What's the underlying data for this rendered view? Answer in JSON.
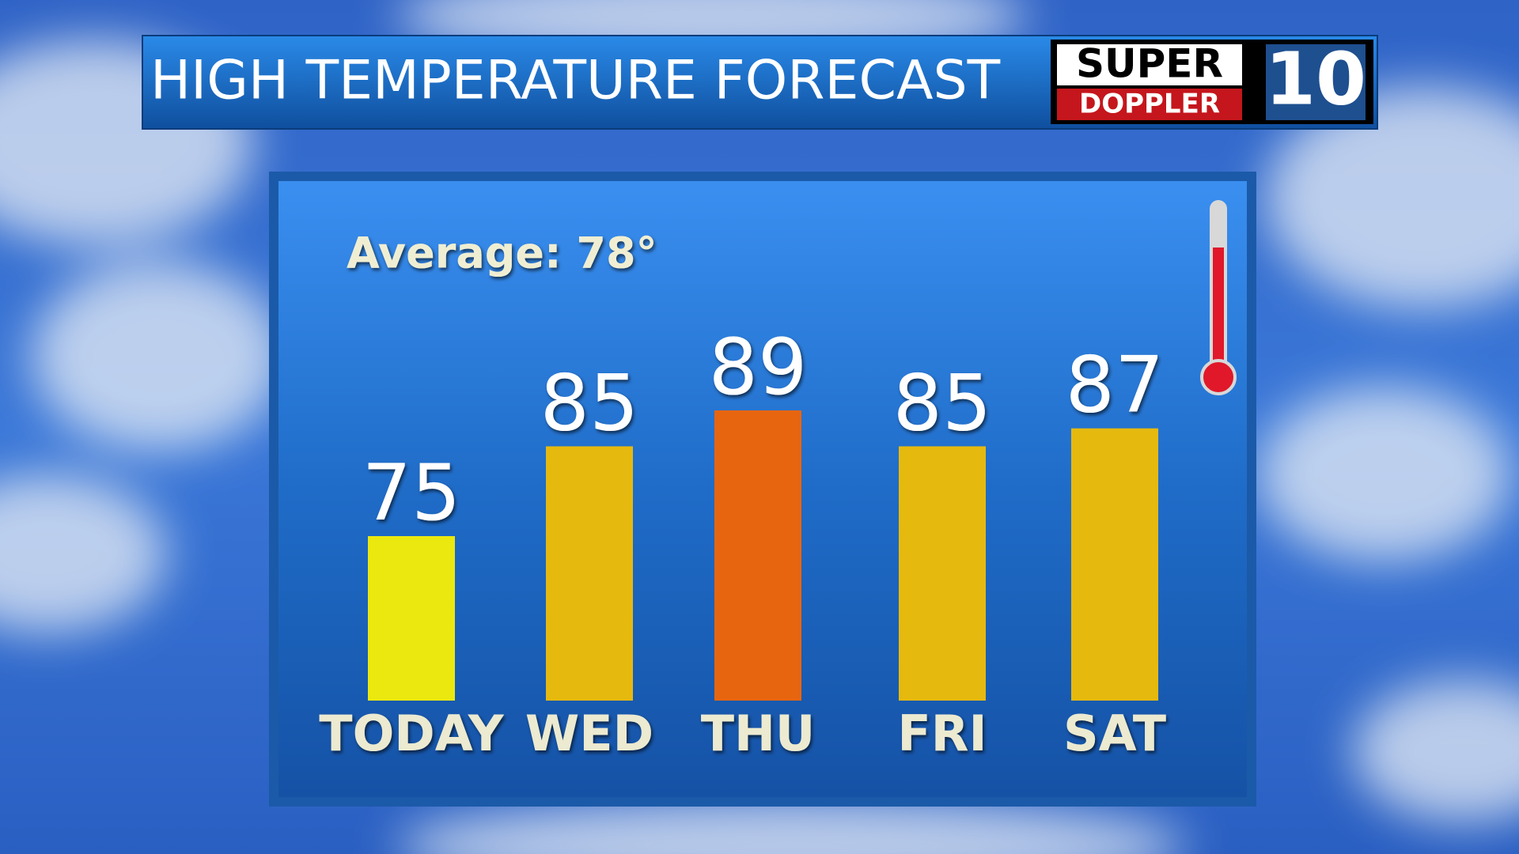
{
  "chart_data": {
    "type": "bar",
    "title": "HIGH TEMPERATURE FORECAST",
    "annotation": "Average: 78°",
    "categories": [
      "TODAY",
      "WED",
      "THU",
      "FRI",
      "SAT"
    ],
    "values": [
      75,
      85,
      89,
      85,
      87
    ],
    "colors": [
      "#ebe80f",
      "#e6b90f",
      "#e8650f",
      "#e6b90f",
      "#e6b90f"
    ]
  },
  "logo": {
    "top": "SUPER",
    "bottom": "DOPPLER",
    "channel": "10"
  }
}
